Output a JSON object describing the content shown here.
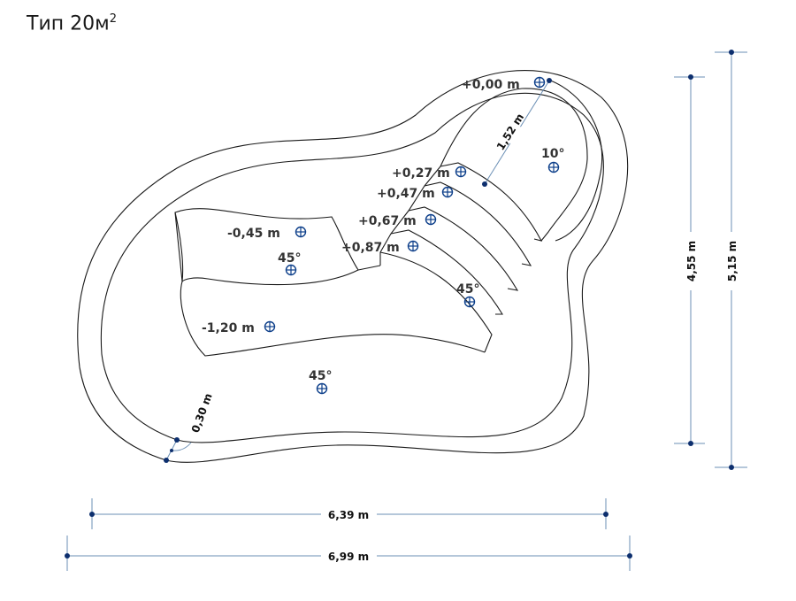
{
  "title": {
    "text": "Тип 20м",
    "sup": "2"
  },
  "levels": {
    "top": "+0,00 m",
    "step1": "+0,27 m",
    "step2": "+0,47 m",
    "step3": "+0,67 m",
    "step4": "+0,87 m",
    "shelf": "-0,45 m",
    "deep": "-1,20 m"
  },
  "slopes": {
    "beach": "10°",
    "shelf": "45°",
    "stairs": "45°",
    "bottom": "45°"
  },
  "dimensions": {
    "beach_width": "1,52 m",
    "rim_width": "0,30 m",
    "inner_length": "6,39 m",
    "outer_length": "6,99 m",
    "inner_width": "4,55 m",
    "outer_width": "5,15 m"
  }
}
